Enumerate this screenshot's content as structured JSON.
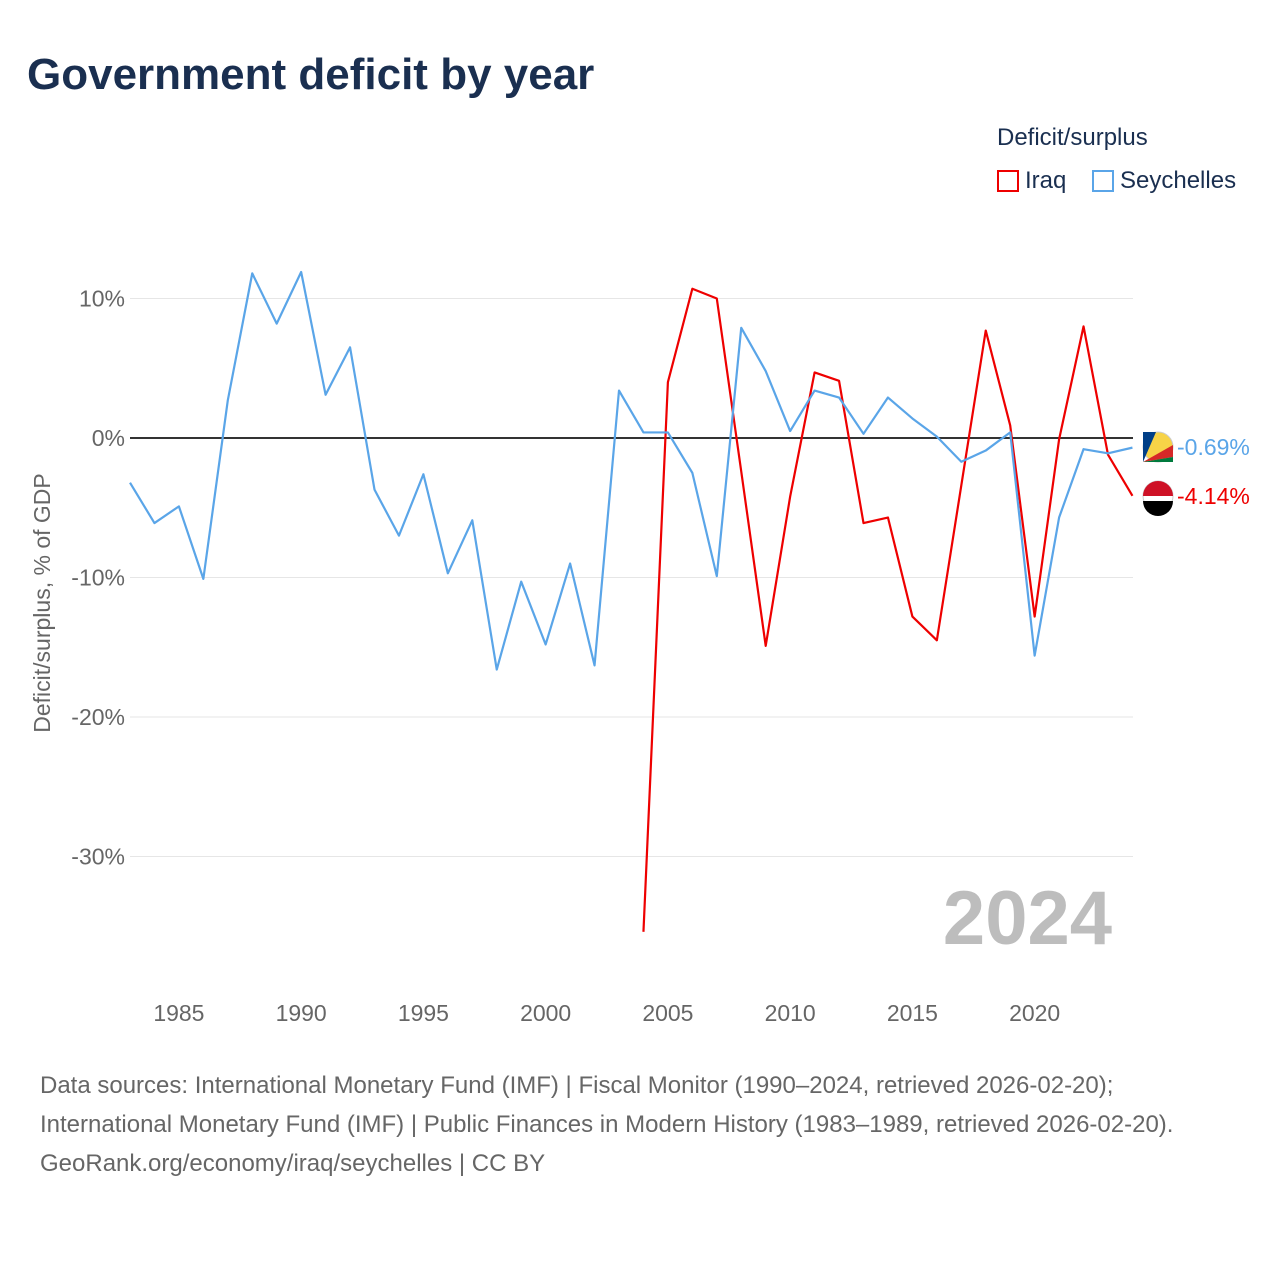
{
  "title": "Government deficit by year",
  "chart_data": {
    "type": "line",
    "title": "Government deficit by year",
    "ylabel": "Deficit/surplus, % of GDP",
    "xlabel": "",
    "ylim": [
      -37,
      14
    ],
    "xlim": [
      1983,
      2024
    ],
    "yticks": [
      10,
      0,
      -10,
      -20,
      -30
    ],
    "ytick_labels": [
      "10%",
      "0%",
      "-10%",
      "-20%",
      "-30%"
    ],
    "xticks": [
      1985,
      1990,
      1995,
      2000,
      2005,
      2010,
      2015,
      2020
    ],
    "xtick_labels": [
      "1985",
      "1990",
      "1995",
      "2000",
      "2005",
      "2010",
      "2015",
      "2020"
    ],
    "legend_title": "Deficit/surplus",
    "legend_position": "top-right",
    "year_watermark": "2024",
    "series": [
      {
        "name": "Iraq",
        "color": "#ee0000",
        "end_label": "-4.14%",
        "x": [
          2004,
          2005,
          2006,
          2007,
          2008,
          2009,
          2010,
          2011,
          2012,
          2013,
          2014,
          2015,
          2016,
          2017,
          2018,
          2019,
          2020,
          2021,
          2022,
          2023,
          2024
        ],
        "values": [
          -35.4,
          4.0,
          10.7,
          10.0,
          -2.4,
          -14.9,
          -4.2,
          4.7,
          4.1,
          -6.1,
          -5.7,
          -12.8,
          -14.5,
          -3.4,
          7.7,
          0.9,
          -12.8,
          -0.1,
          8.0,
          -1.2,
          -4.14
        ]
      },
      {
        "name": "Seychelles",
        "color": "#5aa5e8",
        "end_label": "-0.69%",
        "x": [
          1983,
          1984,
          1985,
          1986,
          1987,
          1988,
          1989,
          1990,
          1991,
          1992,
          1993,
          1994,
          1995,
          1996,
          1997,
          1998,
          1999,
          2000,
          2001,
          2002,
          2003,
          2004,
          2005,
          2006,
          2007,
          2008,
          2009,
          2010,
          2011,
          2012,
          2013,
          2014,
          2015,
          2016,
          2017,
          2018,
          2019,
          2020,
          2021,
          2022,
          2023,
          2024
        ],
        "values": [
          -3.2,
          -6.1,
          -4.9,
          -10.1,
          2.7,
          11.8,
          8.2,
          11.9,
          3.1,
          6.5,
          -3.7,
          -7.0,
          -2.6,
          -9.7,
          -5.9,
          -16.6,
          -10.3,
          -14.8,
          -9.0,
          -16.3,
          3.4,
          0.4,
          0.4,
          -2.5,
          -9.9,
          7.9,
          4.8,
          0.5,
          3.4,
          2.9,
          0.3,
          2.9,
          1.4,
          0.1,
          -1.7,
          -0.9,
          0.4,
          -15.6,
          -5.7,
          -0.8,
          -1.1,
          -0.69
        ]
      }
    ]
  },
  "sources": {
    "line1": "Data sources: International Monetary Fund (IMF) | Fiscal Monitor (1990–2024, retrieved 2026-02-20); International Monetary Fund (IMF) | Public Finances in Modern History (1983–1989, retrieved 2026-02-20).",
    "line2": "GeoRank.org/economy/iraq/seychelles | CC BY"
  }
}
